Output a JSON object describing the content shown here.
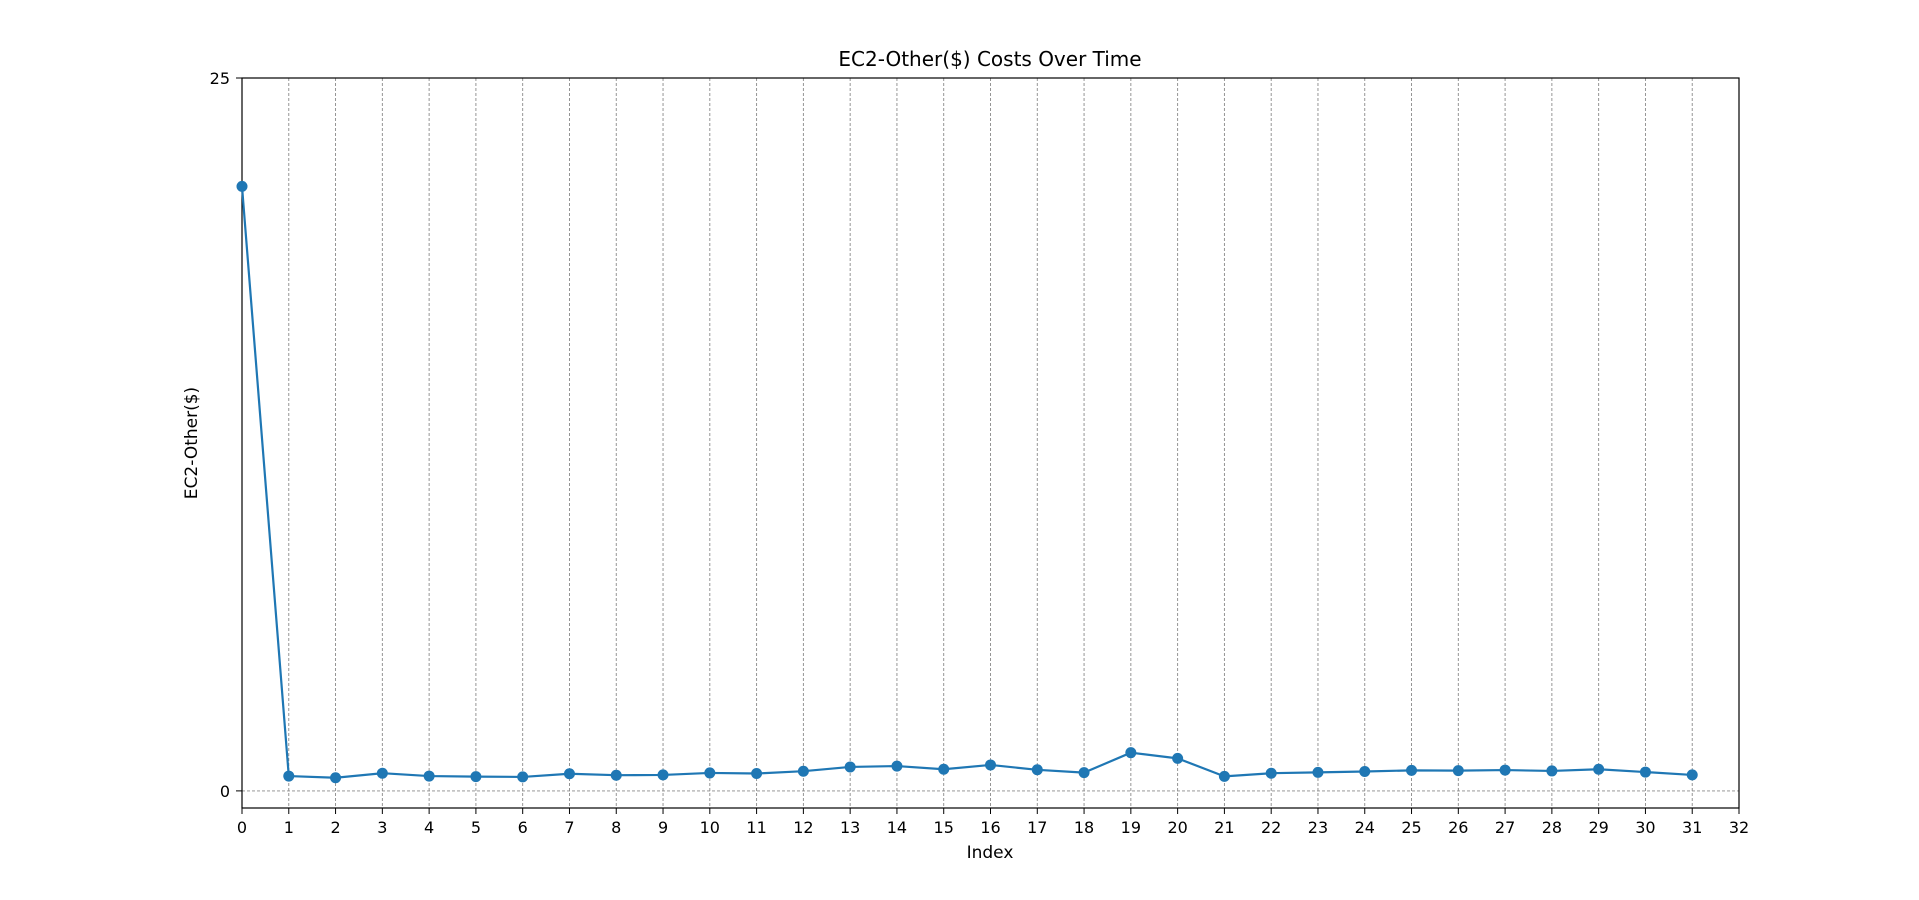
{
  "chart_data": {
    "type": "line",
    "title": "EC2-Other($) Costs Over Time",
    "xlabel": "Index",
    "ylabel": "EC2-Other($)",
    "xlim": [
      0,
      32
    ],
    "ylim": [
      -0.6,
      25
    ],
    "x_ticks": [
      0,
      1,
      2,
      3,
      4,
      5,
      6,
      7,
      8,
      9,
      10,
      11,
      12,
      13,
      14,
      15,
      16,
      17,
      18,
      19,
      20,
      21,
      22,
      23,
      24,
      25,
      26,
      27,
      28,
      29,
      30,
      31,
      32
    ],
    "y_ticks": [
      0,
      25
    ],
    "grid": {
      "x": true,
      "y": "zero-line only",
      "style": "dashed"
    },
    "series": [
      {
        "x": [
          0,
          1,
          2,
          3,
          4,
          5,
          6,
          7,
          8,
          9,
          10,
          11,
          12,
          13,
          14,
          15,
          16,
          17,
          18,
          19,
          20,
          21,
          22,
          23,
          24,
          25,
          26,
          27,
          28,
          29,
          30,
          31
        ],
        "y": [
          21.2,
          0.52,
          0.46,
          0.62,
          0.52,
          0.5,
          0.49,
          0.6,
          0.55,
          0.56,
          0.63,
          0.61,
          0.69,
          0.84,
          0.87,
          0.76,
          0.91,
          0.74,
          0.64,
          1.34,
          1.14,
          0.51,
          0.62,
          0.65,
          0.68,
          0.72,
          0.71,
          0.73,
          0.7,
          0.76,
          0.66,
          0.56
        ],
        "color": "#1f77b4",
        "marker": "circle"
      }
    ]
  }
}
